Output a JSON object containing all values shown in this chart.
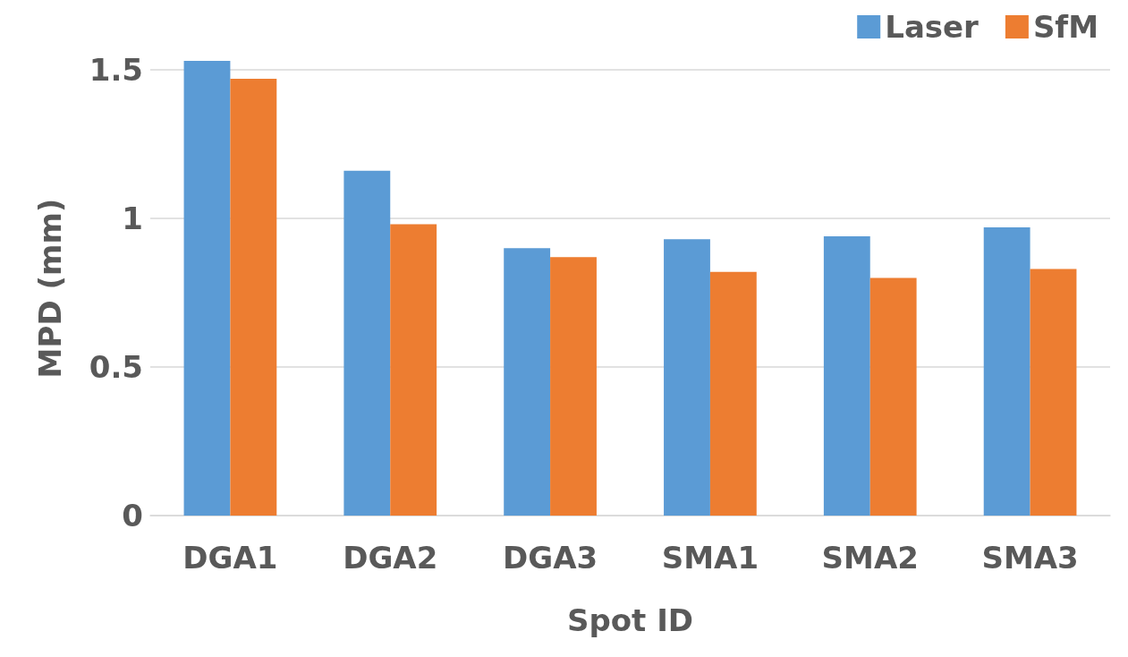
{
  "chart_data": {
    "type": "bar",
    "xlabel": "Spot ID",
    "ylabel": "MPD (mm)",
    "categories": [
      "DGA1",
      "DGA2",
      "DGA3",
      "SMA1",
      "SMA2",
      "SMA3"
    ],
    "series": [
      {
        "name": "Laser",
        "color": "#5b9bd5",
        "values": [
          1.53,
          1.16,
          0.9,
          0.93,
          0.94,
          0.97
        ]
      },
      {
        "name": "SfM",
        "color": "#ed7d31",
        "values": [
          1.47,
          0.98,
          0.87,
          0.82,
          0.8,
          0.83
        ]
      }
    ],
    "yticks": [
      0,
      {
        "value": 0.5,
        "label": "0.5"
      },
      {
        "value": 1,
        "label": "1"
      },
      {
        "value": 1.5,
        "label": "1.5"
      }
    ],
    "ylim": [
      0,
      1.53
    ],
    "grid": "y",
    "legend": "top right"
  }
}
